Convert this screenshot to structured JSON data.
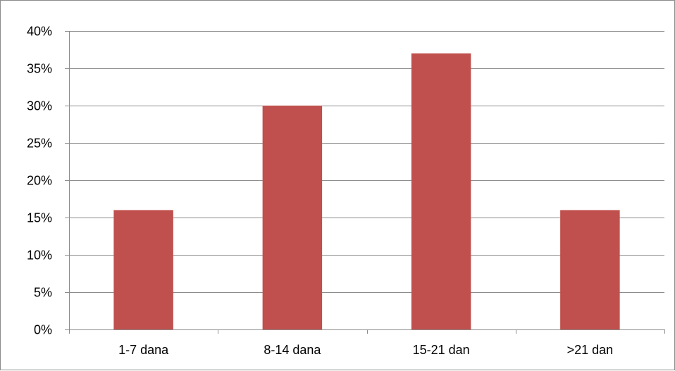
{
  "chart_data": {
    "type": "bar",
    "categories": [
      "1-7 dana",
      "8-14 dana",
      "15-21 dan",
      ">21 dan"
    ],
    "values": [
      16,
      30,
      37,
      16
    ],
    "value_unit": "%",
    "ylim": [
      0,
      40
    ],
    "yticks": [
      0,
      5,
      10,
      15,
      20,
      25,
      30,
      35,
      40
    ],
    "ytick_labels": [
      "0%",
      "5%",
      "10%",
      "15%",
      "20%",
      "25%",
      "30%",
      "35%",
      "40%"
    ],
    "grid": true,
    "legend": "none",
    "bar_color": "#c0504d",
    "grid_color": "#8c8c8c"
  }
}
